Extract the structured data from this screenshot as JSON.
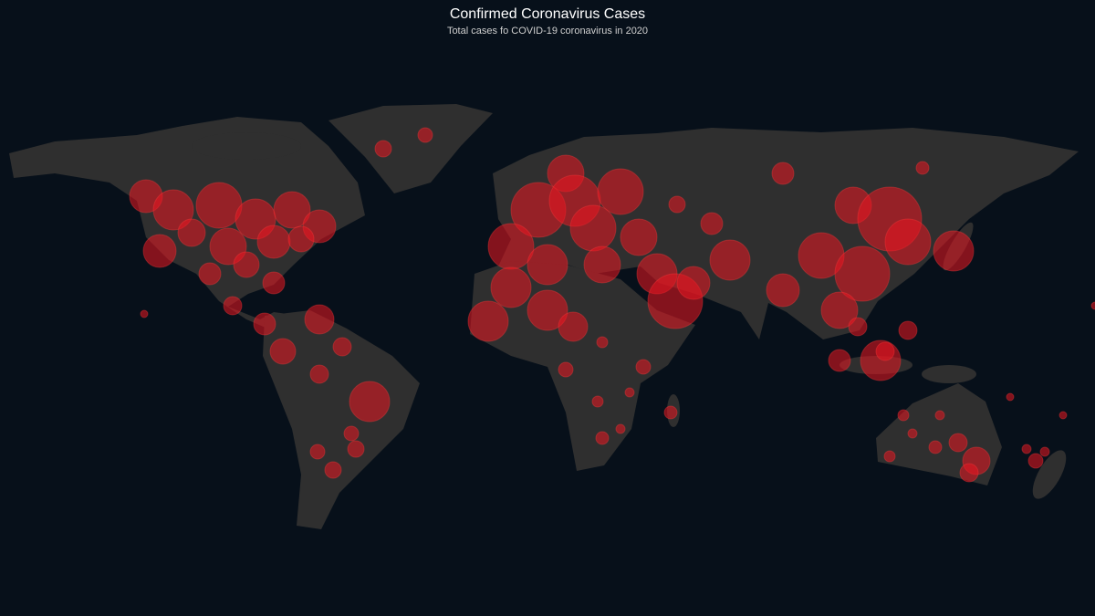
{
  "header": {
    "title": "Confirmed Coronavirus Cases",
    "subtitle": "Total cases fo COVID-19 coronavirus in 2020"
  }
}
